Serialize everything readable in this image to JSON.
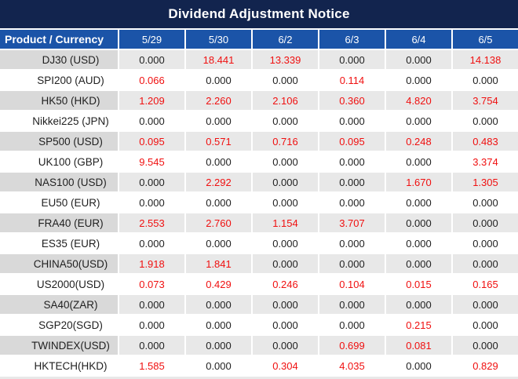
{
  "title": "Dividend Adjustment Notice",
  "colors": {
    "title_bar_bg": "#12244E",
    "header_bg": "#1B54A8",
    "striped_product_bg": "#D9D9D9",
    "striped_value_bg": "#E8E8E8",
    "highlight_value": "#F01010",
    "normal_value": "#1F1F1F"
  },
  "table": {
    "product_header": "Product / Currency",
    "date_headers": [
      "5/29",
      "5/30",
      "6/2",
      "6/3",
      "6/4",
      "6/5"
    ],
    "rows": [
      {
        "product": "DJ30 (USD)",
        "values": [
          "0.000",
          "18.441",
          "13.339",
          "0.000",
          "0.000",
          "14.138"
        ],
        "red": [
          false,
          true,
          true,
          false,
          false,
          true
        ]
      },
      {
        "product": "SPI200 (AUD)",
        "values": [
          "0.066",
          "0.000",
          "0.000",
          "0.114",
          "0.000",
          "0.000"
        ],
        "red": [
          true,
          false,
          false,
          true,
          false,
          false
        ]
      },
      {
        "product": "HK50 (HKD)",
        "values": [
          "1.209",
          "2.260",
          "2.106",
          "0.360",
          "4.820",
          "3.754"
        ],
        "red": [
          true,
          true,
          true,
          true,
          true,
          true
        ]
      },
      {
        "product": "Nikkei225 (JPN)",
        "values": [
          "0.000",
          "0.000",
          "0.000",
          "0.000",
          "0.000",
          "0.000"
        ],
        "red": [
          false,
          false,
          false,
          false,
          false,
          false
        ]
      },
      {
        "product": "SP500 (USD)",
        "values": [
          "0.095",
          "0.571",
          "0.716",
          "0.095",
          "0.248",
          "0.483"
        ],
        "red": [
          true,
          true,
          true,
          true,
          true,
          true
        ]
      },
      {
        "product": "UK100 (GBP)",
        "values": [
          "9.545",
          "0.000",
          "0.000",
          "0.000",
          "0.000",
          "3.374"
        ],
        "red": [
          true,
          false,
          false,
          false,
          false,
          true
        ]
      },
      {
        "product": "NAS100 (USD)",
        "values": [
          "0.000",
          "2.292",
          "0.000",
          "0.000",
          "1.670",
          "1.305"
        ],
        "red": [
          false,
          true,
          false,
          false,
          true,
          true
        ]
      },
      {
        "product": "EU50 (EUR)",
        "values": [
          "0.000",
          "0.000",
          "0.000",
          "0.000",
          "0.000",
          "0.000"
        ],
        "red": [
          false,
          false,
          false,
          false,
          false,
          false
        ]
      },
      {
        "product": "FRA40 (EUR)",
        "values": [
          "2.553",
          "2.760",
          "1.154",
          "3.707",
          "0.000",
          "0.000"
        ],
        "red": [
          true,
          true,
          true,
          true,
          false,
          false
        ]
      },
      {
        "product": "ES35 (EUR)",
        "values": [
          "0.000",
          "0.000",
          "0.000",
          "0.000",
          "0.000",
          "0.000"
        ],
        "red": [
          false,
          false,
          false,
          false,
          false,
          false
        ]
      },
      {
        "product": "CHINA50(USD)",
        "values": [
          "1.918",
          "1.841",
          "0.000",
          "0.000",
          "0.000",
          "0.000"
        ],
        "red": [
          true,
          true,
          false,
          false,
          false,
          false
        ]
      },
      {
        "product": "US2000(USD)",
        "values": [
          "0.073",
          "0.429",
          "0.246",
          "0.104",
          "0.015",
          "0.165"
        ],
        "red": [
          true,
          true,
          true,
          true,
          true,
          true
        ]
      },
      {
        "product": "SA40(ZAR)",
        "values": [
          "0.000",
          "0.000",
          "0.000",
          "0.000",
          "0.000",
          "0.000"
        ],
        "red": [
          false,
          false,
          false,
          false,
          false,
          false
        ]
      },
      {
        "product": "SGP20(SGD)",
        "values": [
          "0.000",
          "0.000",
          "0.000",
          "0.000",
          "0.215",
          "0.000"
        ],
        "red": [
          false,
          false,
          false,
          false,
          true,
          false
        ]
      },
      {
        "product": "TWINDEX(USD)",
        "values": [
          "0.000",
          "0.000",
          "0.000",
          "0.699",
          "0.081",
          "0.000"
        ],
        "red": [
          false,
          false,
          false,
          true,
          true,
          false
        ]
      },
      {
        "product": "HKTECH(HKD)",
        "values": [
          "1.585",
          "0.000",
          "0.304",
          "4.035",
          "0.000",
          "0.829"
        ],
        "red": [
          true,
          false,
          true,
          true,
          false,
          true
        ]
      }
    ]
  }
}
